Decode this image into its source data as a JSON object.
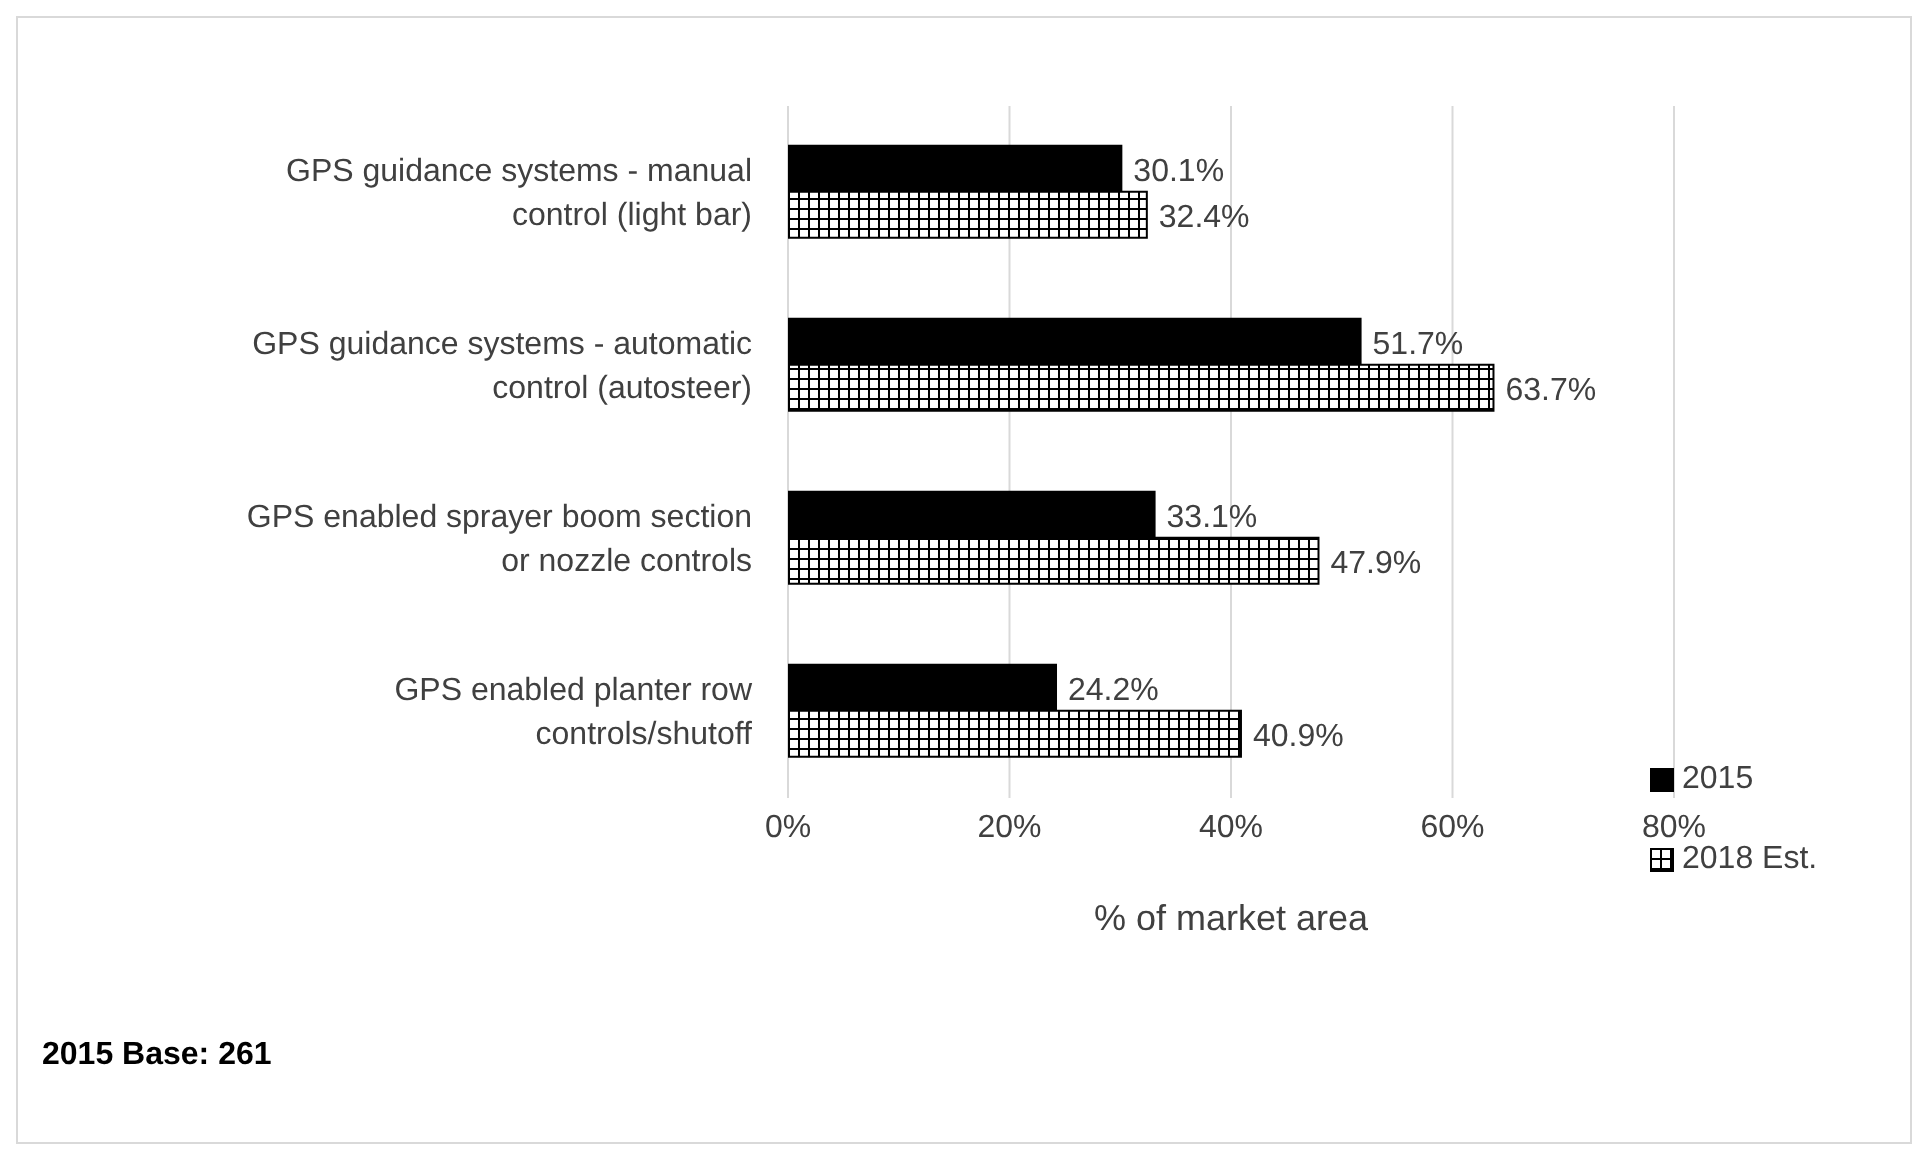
{
  "chart_data": {
    "type": "bar",
    "orientation": "horizontal",
    "xlabel": "% of market area",
    "categories": [
      "GPS guidance systems - manual control (light bar)",
      "GPS guidance systems - automatic control (autosteer)",
      "GPS enabled sprayer boom section or nozzle controls",
      "GPS enabled planter row controls/shutoff"
    ],
    "series": [
      {
        "name": "2015",
        "color": "#000000",
        "values": [
          30.1,
          51.7,
          33.1,
          24.2
        ],
        "value_labels": [
          "30.1%",
          "51.7%",
          "33.1%",
          "24.2%"
        ]
      },
      {
        "name": "2018 Est.",
        "color": "#000000",
        "values": [
          32.4,
          63.7,
          47.9,
          40.9
        ],
        "value_labels": [
          "32.4%",
          "63.7%",
          "47.9%",
          "40.9%"
        ]
      }
    ],
    "xlim": [
      0,
      80
    ],
    "xticks": [
      {
        "value": 0,
        "label": "0%"
      },
      {
        "value": 20,
        "label": "20%"
      },
      {
        "value": 40,
        "label": "40%"
      },
      {
        "value": 60,
        "label": "60%"
      },
      {
        "value": 80,
        "label": "80%"
      }
    ],
    "grid": "x",
    "legend": "bottom right",
    "annotations": [
      "2015 Base: 261"
    ]
  }
}
